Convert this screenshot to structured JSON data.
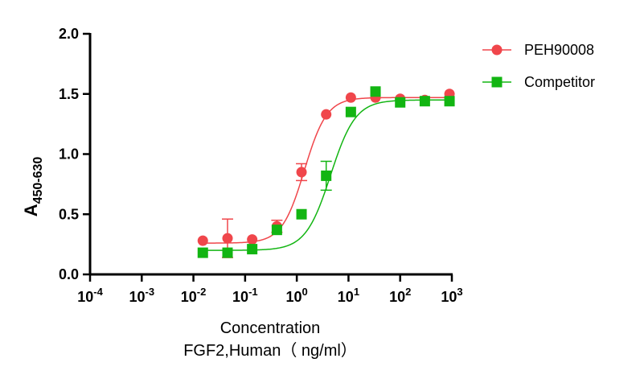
{
  "chart_data": {
    "type": "scatter",
    "ylabel_main": "A",
    "ylabel_sub": "450-630",
    "xlabel_line1": "Concentration",
    "xlabel_line2": "FGF2,Human（ ng/ml）",
    "x_scale": "log10",
    "xlim": [
      0.0001,
      1000
    ],
    "ylim": [
      0,
      2.0
    ],
    "y_ticks": [
      "0.0",
      "0.5",
      "1.0",
      "1.5",
      "2.0"
    ],
    "x_tick_exponents": [
      "-4",
      "-3",
      "-2",
      "-1",
      "0",
      "1",
      "2",
      "3"
    ],
    "x_tick_base": "10",
    "grid": false,
    "legend_position": "top-right",
    "series": [
      {
        "name": "PEH90008",
        "color": "#f0464b",
        "marker": "circle",
        "x": [
          0.0152,
          0.0457,
          0.137,
          0.412,
          1.235,
          3.704,
          11.11,
          33.33,
          100,
          300,
          900
        ],
        "y": [
          0.28,
          0.3,
          0.29,
          0.4,
          0.85,
          1.33,
          1.47,
          1.47,
          1.46,
          1.45,
          1.5
        ],
        "err": [
          0,
          0.16,
          0,
          0.05,
          0.07,
          0,
          0,
          0,
          0,
          0,
          0
        ],
        "fit": {
          "bottom": 0.26,
          "top": 1.47,
          "ec50": 1.4,
          "hill": 2.0
        }
      },
      {
        "name": "Competitor",
        "color": "#12b512",
        "marker": "square",
        "x": [
          0.0152,
          0.0457,
          0.137,
          0.412,
          1.235,
          3.704,
          11.11,
          33.33,
          100,
          300,
          900
        ],
        "y": [
          0.18,
          0.18,
          0.21,
          0.37,
          0.5,
          0.82,
          1.35,
          1.52,
          1.43,
          1.44,
          1.44
        ],
        "err": [
          0,
          0,
          0,
          0,
          0,
          0.12,
          0,
          0,
          0,
          0,
          0
        ],
        "fit": {
          "bottom": 0.2,
          "top": 1.45,
          "ec50": 4.5,
          "hill": 1.8
        }
      }
    ]
  }
}
